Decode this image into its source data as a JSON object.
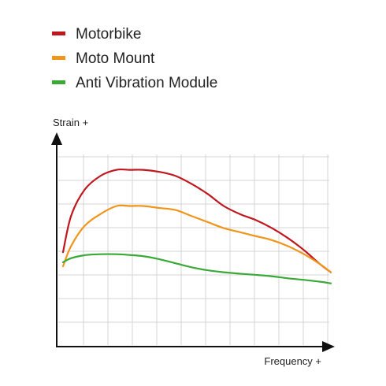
{
  "chart_data": {
    "type": "line",
    "xlabel": "Frequency +",
    "ylabel": "Strain +",
    "xlim": [
      0,
      100
    ],
    "ylim": [
      0,
      100
    ],
    "grid": true,
    "legend_position": "top-left",
    "series": [
      {
        "name": "Motorbike",
        "color": "#c0171f",
        "x": [
          0,
          3,
          8,
          14,
          20,
          25,
          30,
          36,
          42,
          48,
          54,
          60,
          66,
          72,
          78,
          84,
          90,
          96,
          100
        ],
        "y": [
          47,
          65,
          78,
          85,
          88,
          88,
          88,
          87,
          85,
          81,
          76,
          70,
          66,
          63,
          59,
          54,
          48,
          41,
          37
        ]
      },
      {
        "name": "Moto Mount",
        "color": "#f0951a",
        "x": [
          0,
          3,
          8,
          14,
          20,
          25,
          30,
          36,
          42,
          48,
          54,
          60,
          66,
          72,
          78,
          84,
          90,
          96,
          100
        ],
        "y": [
          40,
          50,
          60,
          66,
          70,
          70,
          70,
          69,
          68,
          65,
          62,
          59,
          57,
          55,
          53,
          50,
          46,
          41,
          37
        ]
      },
      {
        "name": "Anti Vibration Module",
        "color": "#3aa935",
        "x": [
          0,
          3,
          8,
          14,
          20,
          25,
          30,
          36,
          42,
          48,
          54,
          60,
          66,
          72,
          78,
          84,
          90,
          96,
          100
        ],
        "y": [
          42,
          44,
          45.5,
          46,
          46,
          45.6,
          45,
          43.5,
          41.5,
          39.5,
          38,
          37,
          36.3,
          35.7,
          35,
          34,
          33.2,
          32.3,
          31.5
        ]
      }
    ]
  }
}
